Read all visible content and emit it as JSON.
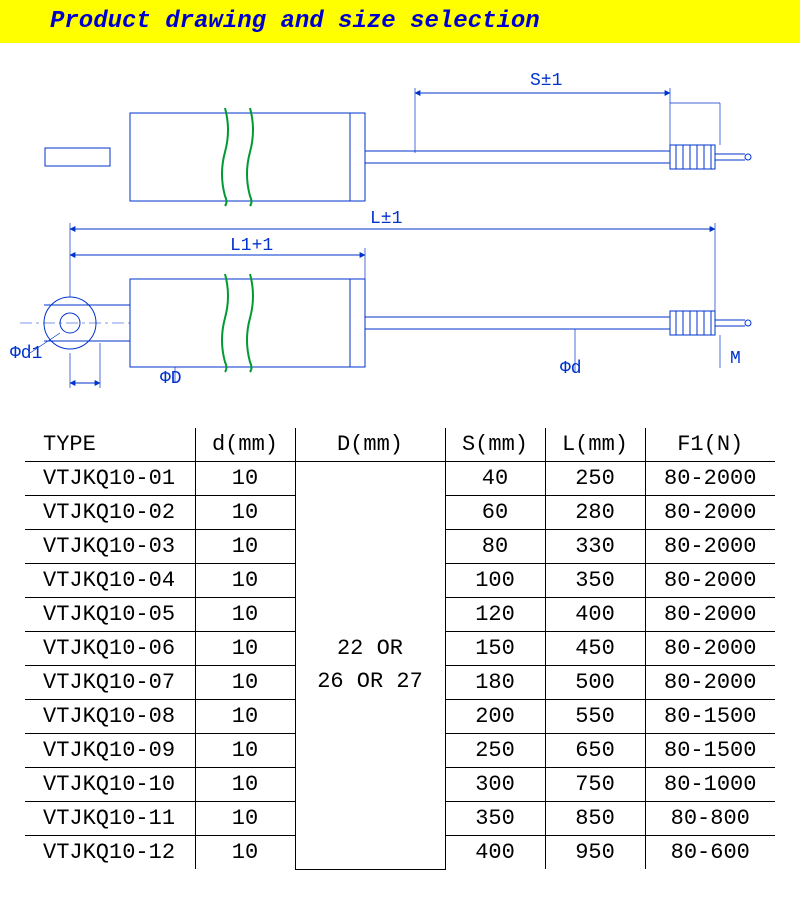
{
  "title": "Product drawing and size selection",
  "drawing": {
    "stroke_color": "#0033cc",
    "break_color": "#009933",
    "label_color": "#0033cc",
    "labels": {
      "S": "S±1",
      "L": "L±1",
      "L1": "L1+1",
      "phiD": "ΦD",
      "phid": "Φd",
      "phid1": "Φd1",
      "M": "M"
    }
  },
  "table": {
    "columns": [
      "TYPE",
      "d(mm)",
      "D(mm)",
      "S(mm)",
      "L(mm)",
      "F1(N)"
    ],
    "D_merged_lines": [
      "22 OR",
      "26 OR 27"
    ],
    "rows": [
      {
        "type": "VTJKQ10-01",
        "d": "10",
        "S": "40",
        "L": "250",
        "F": "80-2000"
      },
      {
        "type": "VTJKQ10-02",
        "d": "10",
        "S": "60",
        "L": "280",
        "F": "80-2000"
      },
      {
        "type": "VTJKQ10-03",
        "d": "10",
        "S": "80",
        "L": "330",
        "F": "80-2000"
      },
      {
        "type": "VTJKQ10-04",
        "d": "10",
        "S": "100",
        "L": "350",
        "F": "80-2000"
      },
      {
        "type": "VTJKQ10-05",
        "d": "10",
        "S": "120",
        "L": "400",
        "F": "80-2000"
      },
      {
        "type": "VTJKQ10-06",
        "d": "10",
        "S": "150",
        "L": "450",
        "F": "80-2000"
      },
      {
        "type": "VTJKQ10-07",
        "d": "10",
        "S": "180",
        "L": "500",
        "F": "80-2000"
      },
      {
        "type": "VTJKQ10-08",
        "d": "10",
        "S": "200",
        "L": "550",
        "F": "80-1500"
      },
      {
        "type": "VTJKQ10-09",
        "d": "10",
        "S": "250",
        "L": "650",
        "F": "80-1500"
      },
      {
        "type": "VTJKQ10-10",
        "d": "10",
        "S": "300",
        "L": "750",
        "F": "80-1000"
      },
      {
        "type": "VTJKQ10-11",
        "d": "10",
        "S": "350",
        "L": "850",
        "F": "80-800"
      },
      {
        "type": "VTJKQ10-12",
        "d": "10",
        "S": "400",
        "L": "950",
        "F": "80-600"
      }
    ]
  }
}
